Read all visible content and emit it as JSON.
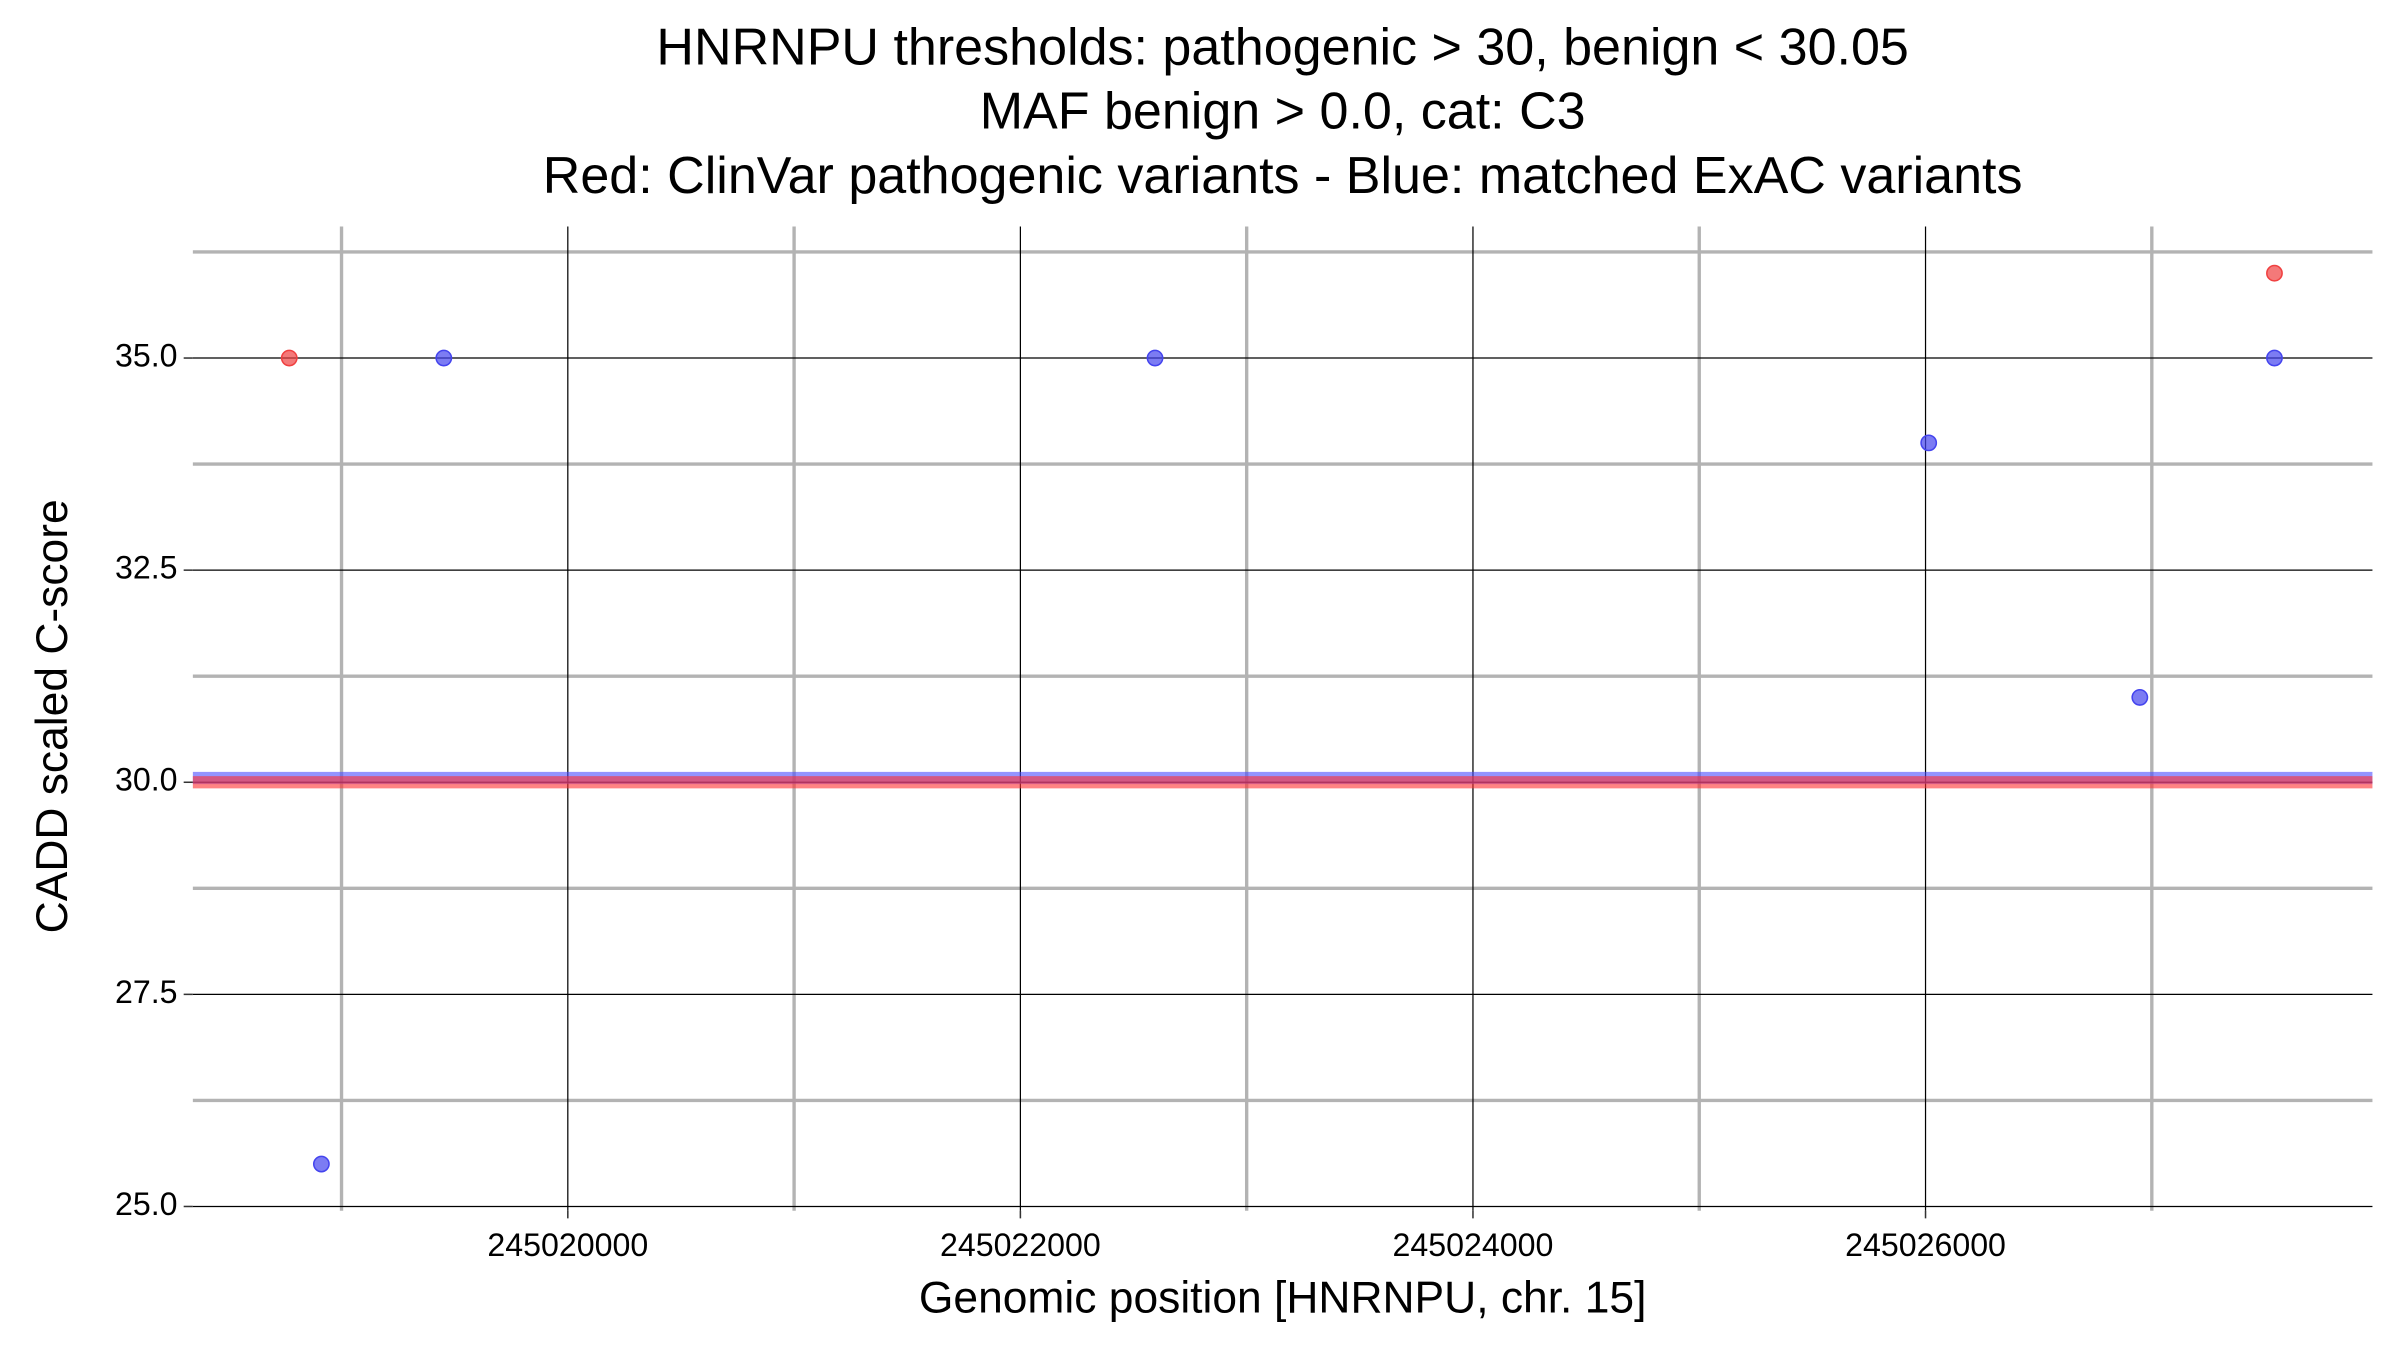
{
  "chart_data": {
    "type": "scatter",
    "title": [
      "HNRNPU thresholds: pathogenic > 30, benign < 30.05",
      "MAF benign > 0.0, cat: C3",
      "Red: ClinVar pathogenic variants - Blue: matched ExAC variants"
    ],
    "x_label": "Genomic position [HNRNPU, chr. 15]",
    "y_label": "CADD scaled C-score",
    "xlim": [
      245018343,
      245027975
    ],
    "ylim": [
      24.95,
      36.55
    ],
    "xticks": [
      245020000,
      245022000,
      245024000,
      245026000
    ],
    "x_minor_ticks": [
      245019000,
      245021000,
      245023000,
      245025000,
      245027000
    ],
    "yticks": [
      {
        "value": 25,
        "label": "25.0"
      },
      {
        "value": 27.5,
        "label": "27.5"
      },
      {
        "value": 30,
        "label": "30.0"
      },
      {
        "value": 32.5,
        "label": "32.5"
      },
      {
        "value": 35,
        "label": "35.0"
      }
    ],
    "y_minor_ticks": [
      26.25,
      28.75,
      31.25,
      33.75,
      36.25
    ],
    "grid": true,
    "hlines": [
      {
        "value": 30.05,
        "color": "#4d4dff"
      },
      {
        "value": 30,
        "color": "#ff3030"
      }
    ],
    "series": [
      {
        "color": "#f04040",
        "x": [
          245018769,
          245027542
        ],
        "values": [
          35,
          36
        ]
      },
      {
        "color": "#4444ee",
        "x": [
          245019452,
          245018911,
          245022595,
          245026014,
          245026947,
          245027542
        ],
        "values": [
          35,
          25.5,
          35,
          34,
          31,
          35
        ]
      }
    ]
  }
}
